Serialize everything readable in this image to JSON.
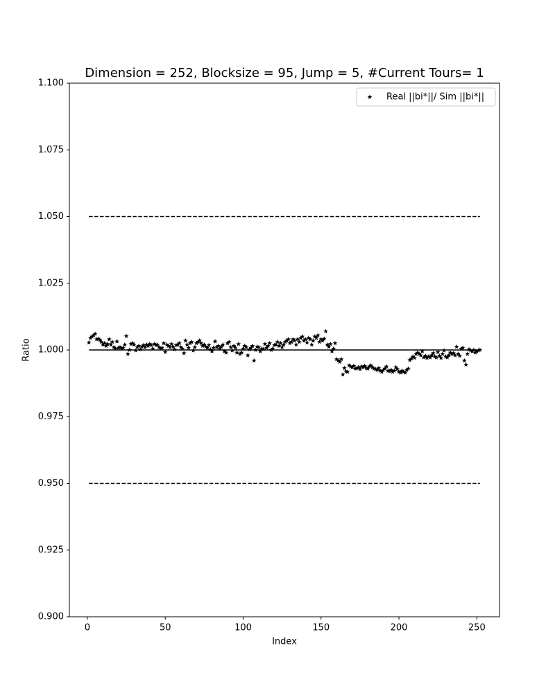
{
  "chart_data": {
    "type": "scatter",
    "title": "Dimension = 252, Blocksize = 95, Jump = 5, #Current Tours= 1",
    "x_label": "Index",
    "y_label": "Ratio",
    "xlim": [
      -11.55,
      264.55
    ],
    "xticks": [
      0,
      50,
      100,
      150,
      200,
      250
    ],
    "ylim": [
      0.9,
      1.1
    ],
    "yticks": [
      {
        "value": 0.9,
        "label": "0.900"
      },
      {
        "value": 0.925,
        "label": "0.925"
      },
      {
        "value": 0.95,
        "label": "0.950"
      },
      {
        "value": 0.975,
        "label": "0.975"
      },
      {
        "value": 1.0,
        "label": "1.000"
      },
      {
        "value": 1.025,
        "label": "1.025"
      },
      {
        "value": 1.05,
        "label": "1.050"
      },
      {
        "value": 1.075,
        "label": "1.075"
      },
      {
        "value": 1.1,
        "label": "1.100"
      }
    ],
    "legend": "upper right",
    "marker": "star",
    "hlines": [
      {
        "y": 1.05,
        "style": "dashed"
      },
      {
        "y": 1.0,
        "style": "solid"
      },
      {
        "y": 0.95,
        "style": "dashed"
      }
    ],
    "x": [
      1,
      2,
      3,
      4,
      5,
      6,
      7,
      8,
      9,
      10,
      11,
      12,
      13,
      14,
      15,
      16,
      17,
      18,
      19,
      20,
      21,
      22,
      23,
      24,
      25,
      26,
      27,
      28,
      29,
      30,
      31,
      32,
      33,
      34,
      35,
      36,
      37,
      38,
      39,
      40,
      41,
      42,
      43,
      44,
      45,
      46,
      47,
      48,
      49,
      50,
      51,
      52,
      53,
      54,
      55,
      56,
      57,
      58,
      59,
      60,
      61,
      62,
      63,
      64,
      65,
      66,
      67,
      68,
      69,
      70,
      71,
      72,
      73,
      74,
      75,
      76,
      77,
      78,
      79,
      80,
      81,
      82,
      83,
      84,
      85,
      86,
      87,
      88,
      89,
      90,
      91,
      92,
      93,
      94,
      95,
      96,
      97,
      98,
      99,
      100,
      101,
      102,
      103,
      104,
      105,
      106,
      107,
      108,
      109,
      110,
      111,
      112,
      113,
      114,
      115,
      116,
      117,
      118,
      119,
      120,
      121,
      122,
      123,
      124,
      125,
      126,
      127,
      128,
      129,
      130,
      131,
      132,
      133,
      134,
      135,
      136,
      137,
      138,
      139,
      140,
      141,
      142,
      143,
      144,
      145,
      146,
      147,
      148,
      149,
      150,
      151,
      152,
      153,
      154,
      155,
      156,
      157,
      158,
      159,
      160,
      161,
      162,
      163,
      164,
      165,
      166,
      167,
      168,
      169,
      170,
      171,
      172,
      173,
      174,
      175,
      176,
      177,
      178,
      179,
      180,
      181,
      182,
      183,
      184,
      185,
      186,
      187,
      188,
      189,
      190,
      191,
      192,
      193,
      194,
      195,
      196,
      197,
      198,
      199,
      200,
      201,
      202,
      203,
      204,
      205,
      206,
      207,
      208,
      209,
      210,
      211,
      212,
      213,
      214,
      215,
      216,
      217,
      218,
      219,
      220,
      221,
      222,
      223,
      224,
      225,
      226,
      227,
      228,
      229,
      230,
      231,
      232,
      233,
      234,
      235,
      236,
      237,
      238,
      239,
      240,
      241,
      242,
      243,
      244,
      245,
      246,
      247,
      248,
      249,
      250,
      251,
      252
    ],
    "series": [
      {
        "name": "Real ||bi*||/ Sim ||bi*||",
        "color": "#000000",
        "values": [
          1.0028,
          1.0045,
          1.005,
          1.0055,
          1.006,
          1.004,
          1.0042,
          1.0038,
          1.003,
          1.002,
          1.0025,
          1.0015,
          1.0022,
          1.004,
          1.002,
          1.003,
          1.001,
          1.0005,
          1.0032,
          1.0008,
          1.001,
          1.0005,
          1.0008,
          1.002,
          1.0052,
          0.9985,
          1.0,
          1.0022,
          1.0025,
          1.002,
          0.9998,
          1.001,
          1.0015,
          1.0002,
          1.0012,
          1.0018,
          1.001,
          1.002,
          1.0015,
          1.0022,
          1.0018,
          1.0005,
          1.0022,
          1.0018,
          1.002,
          1.001,
          1.0005,
          1.0008,
          1.0025,
          0.9992,
          1.002,
          1.0015,
          1.001,
          1.0022,
          1.0012,
          1.0002,
          1.0018,
          1.002,
          1.0025,
          1.001,
          1.0005,
          0.9988,
          1.0035,
          1.002,
          1.0008,
          1.0025,
          1.003,
          0.9998,
          1.001,
          1.0025,
          1.003,
          1.0035,
          1.0025,
          1.0015,
          1.002,
          1.0012,
          1.0008,
          1.0018,
          1.0002,
          0.9995,
          1.0008,
          1.0032,
          1.001,
          1.0015,
          1.0005,
          1.0012,
          1.002,
          0.9995,
          0.999,
          1.0025,
          1.003,
          1.001,
          0.9998,
          1.0015,
          1.0008,
          0.999,
          1.0022,
          0.9985,
          0.999,
          1.0005,
          1.0015,
          1.001,
          0.998,
          1.0002,
          1.0008,
          1.0015,
          0.996,
          1.0,
          1.0012,
          1.001,
          0.9995,
          1.0005,
          1.0003,
          1.0022,
          1.0008,
          1.0015,
          1.0025,
          1.0,
          1.0005,
          1.0018,
          1.002,
          1.003,
          1.0015,
          1.0025,
          1.001,
          1.002,
          1.003,
          1.0035,
          1.004,
          1.0025,
          1.003,
          1.004,
          1.0035,
          1.002,
          1.004,
          1.003,
          1.0045,
          1.005,
          1.0035,
          1.004,
          1.0028,
          1.0045,
          1.004,
          1.002,
          1.0035,
          1.005,
          1.0045,
          1.0055,
          1.003,
          1.004,
          1.0035,
          1.0042,
          1.007,
          1.002,
          1.0012,
          1.0022,
          0.9995,
          1.0005,
          1.0025,
          0.9965,
          0.996,
          0.9955,
          0.9965,
          0.9908,
          0.9932,
          0.992,
          0.9918,
          0.9942,
          0.9938,
          0.9935,
          0.994,
          0.993,
          0.9932,
          0.9935,
          0.9928,
          0.9938,
          0.9935,
          0.994,
          0.9932,
          0.993,
          0.9938,
          0.9942,
          0.9935,
          0.993,
          0.9928,
          0.9925,
          0.9932,
          0.9922,
          0.9918,
          0.9925,
          0.993,
          0.9938,
          0.9922,
          0.992,
          0.9925,
          0.9918,
          0.9922,
          0.9935,
          0.9928,
          0.9918,
          0.9915,
          0.9922,
          0.9918,
          0.9915,
          0.9925,
          0.993,
          0.9962,
          0.9968,
          0.9975,
          0.997,
          0.9985,
          0.999,
          0.9985,
          0.998,
          0.9995,
          0.9972,
          0.9978,
          0.997,
          0.9975,
          0.9972,
          0.998,
          0.9988,
          0.9975,
          0.9972,
          0.9992,
          0.9978,
          0.997,
          0.9985,
          0.9998,
          0.9975,
          0.9972,
          0.998,
          0.999,
          0.9985,
          0.9988,
          0.998,
          1.0012,
          0.9985,
          0.9978,
          1.0005,
          1.0008,
          0.996,
          0.9945,
          0.9985,
          1.0002,
          0.9998,
          0.9995,
          1.0,
          0.999,
          0.9995,
          0.9998,
          1.0
        ]
      }
    ]
  }
}
